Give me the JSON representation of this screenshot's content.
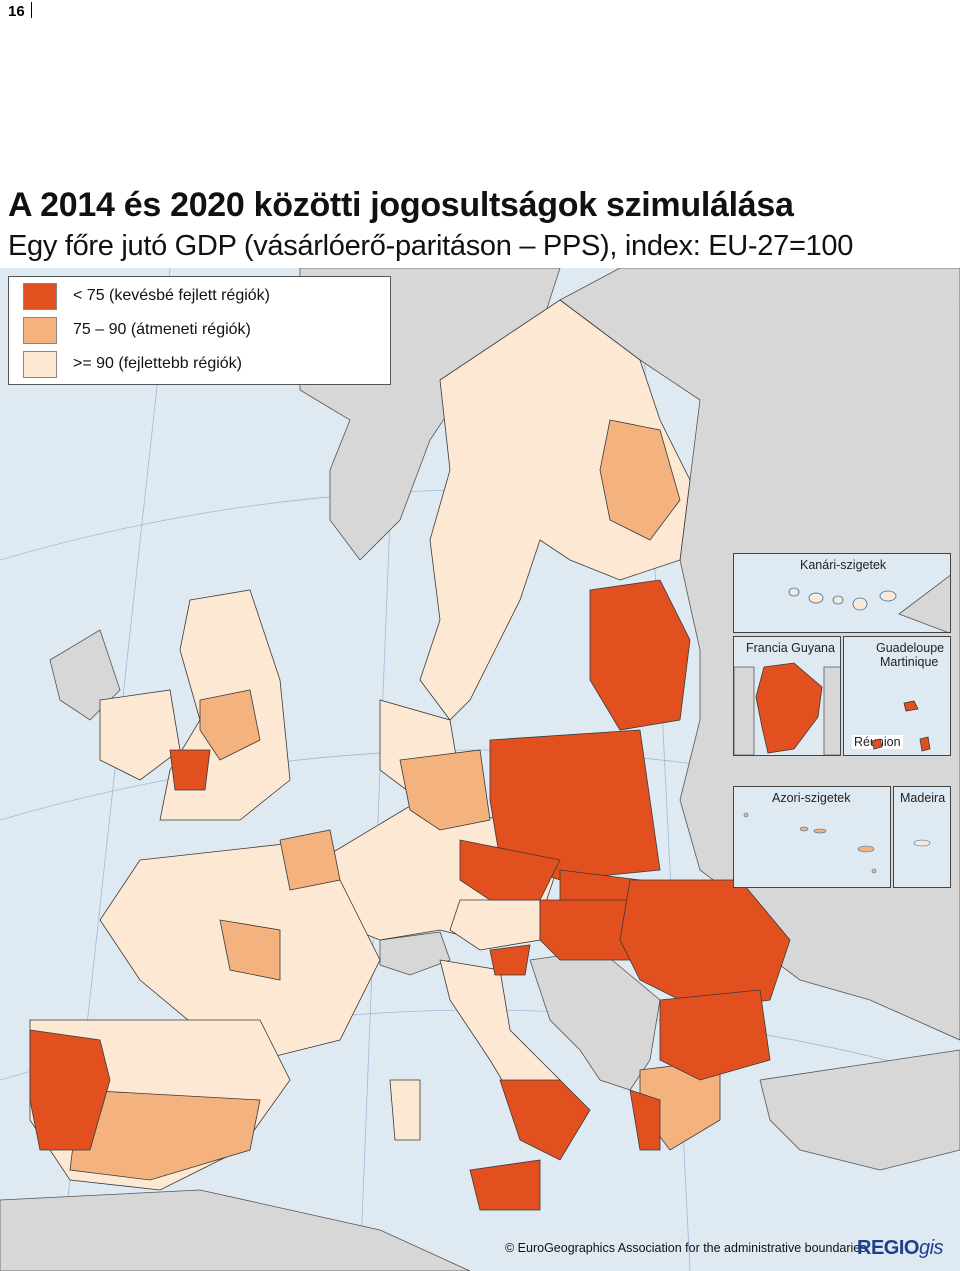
{
  "page_number": "16",
  "title": "A 2014 és 2020 közötti jogosultságok szimulálása",
  "subtitle": "Egy főre jutó GDP (vásárlóerő-paritáson – PPS), index: EU-27=100",
  "legend": {
    "items": [
      {
        "label": "< 75 (kevésbé fejlett régiók)",
        "color": "#e2501f"
      },
      {
        "label": "75 – 90 (átmeneti régiók)",
        "color": "#f4b27f"
      },
      {
        "label": ">= 90 (fejlettebb régiók)",
        "color": "#fde9d3"
      }
    ]
  },
  "colors": {
    "sea": "#dfe9f2",
    "non_eu": "#d7d7d7",
    "boundary": "#3a3a3a",
    "coast": "#2a6fb5"
  },
  "insets": {
    "canary": "Kanári-szigetek",
    "guyane": "Francia Guyana",
    "guadeloupe": "Guadeloupe",
    "martinique": "Martinique",
    "reunion": "Réunion",
    "azores": "Azori-szigetek",
    "madeira": "Madeira"
  },
  "credit": "© EuroGeographics Association for the administrative boundaries",
  "logo": {
    "main": "REGIO",
    "suffix": "gis"
  }
}
